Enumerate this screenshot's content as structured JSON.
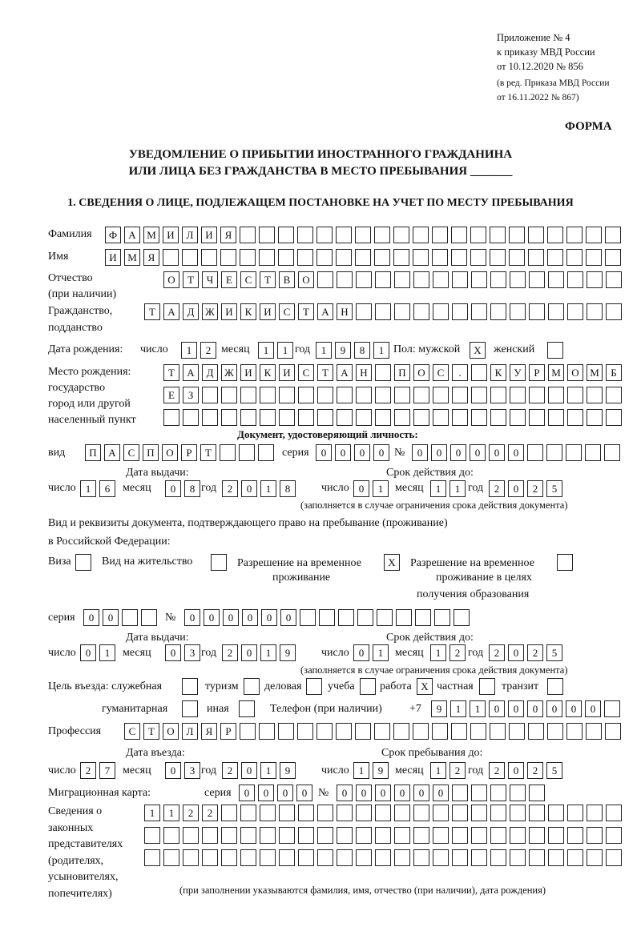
{
  "header": {
    "appendix": [
      "Приложение № 4",
      "к приказу МВД России",
      "от 10.12.2020 № 856"
    ],
    "edition": [
      "(в ред. Приказа МВД России",
      "от 16.11.2022 № 867)"
    ],
    "form_label": "ФОРМА",
    "title1": "УВЕДОМЛЕНИЕ О ПРИБЫТИИ ИНОСТРАННОГО ГРАЖДАНИНА",
    "title2": "ИЛИ ЛИЦА БЕЗ ГРАЖДАНСТВА В МЕСТО ПРЕБЫВАНИЯ _______",
    "section1": "1. СВЕДЕНИЯ О ЛИЦЕ, ПОДЛЕЖАЩЕМ ПОСТАНОВКЕ НА УЧЕТ ПО МЕСТУ ПРЕБЫВАНИЯ"
  },
  "labels": {
    "surname": "Фамилия",
    "name": "Имя",
    "patronymic": "Отчество",
    "patronymic2": "(при наличии)",
    "citizenship": "Гражданство,",
    "citizenship2": "подданство",
    "dob": "Дата рождения:",
    "day": "число",
    "month": "месяц",
    "year": "год",
    "sex": "Пол: мужской",
    "female": "женский",
    "pob": "Место рождения:",
    "pob2": "государство",
    "pob3": "город или другой",
    "pob4": "населенный пункт",
    "id_doc": "Документ, удостоверяющий личность:",
    "kind": "вид",
    "series": "серия",
    "number": "№",
    "issue_date": "Дата выдачи:",
    "valid_until": "Срок действия до:",
    "valid_note": "(заполняется в случае ограничения срока действия документа)",
    "right_doc": "Вид и реквизиты документа, подтверждающего право на пребывание (проживание)",
    "right_doc2": "в Российской Федерации:",
    "visa": "Виза",
    "residence": "Вид на жительство",
    "trp1": "Разрешение на временное",
    "trp2": "проживание",
    "trpe1": "Разрешение на временное",
    "trpe2": "проживание в целях",
    "trpe3": "получения образования",
    "purpose": "Цель въезда: служебная",
    "tourism": "туризм",
    "business": "деловая",
    "study": "учеба",
    "work": "работа",
    "private": "частная",
    "transit": "транзит",
    "humanitarian": "гуманитарная",
    "other": "иная",
    "phone": "Телефон (при наличии)",
    "phone_prefix": "+7",
    "profession": "Профессия",
    "entry_date": "Дата въезда:",
    "stay_until": "Срок пребывания до:",
    "migration_card": "Миграционная карта:",
    "reps": [
      "Сведения о",
      "законных",
      "представителях",
      "(родителях,",
      "усыновителях,",
      "попечителях)"
    ],
    "reps_note": "(при заполнении указываются фамилия, имя, отчество (при наличии), дата рождения)"
  },
  "values": {
    "surname": [
      "Ф",
      "А",
      "М",
      "И",
      "Л",
      "И",
      "Я",
      "",
      "",
      "",
      "",
      "",
      "",
      "",
      "",
      "",
      "",
      "",
      "",
      "",
      "",
      "",
      "",
      "",
      "",
      "",
      ""
    ],
    "name": [
      "И",
      "М",
      "Я",
      "",
      "",
      "",
      "",
      "",
      "",
      "",
      "",
      "",
      "",
      "",
      "",
      "",
      "",
      "",
      "",
      "",
      "",
      "",
      "",
      "",
      "",
      "",
      ""
    ],
    "patronymic": [
      "О",
      "Т",
      "Ч",
      "Е",
      "С",
      "Т",
      "В",
      "О",
      "",
      "",
      "",
      "",
      "",
      "",
      "",
      "",
      "",
      "",
      "",
      "",
      "",
      "",
      "",
      ""
    ],
    "citizenship": [
      "Т",
      "А",
      "Д",
      "Ж",
      "И",
      "К",
      "И",
      "С",
      "Т",
      "А",
      "Н",
      "",
      "",
      "",
      "",
      "",
      "",
      "",
      "",
      "",
      "",
      "",
      "",
      "",
      ""
    ],
    "dob_day": [
      "1",
      "2"
    ],
    "dob_month": [
      "1",
      "1"
    ],
    "dob_year": [
      "1",
      "9",
      "8",
      "1"
    ],
    "male": [
      "X"
    ],
    "female": [
      ""
    ],
    "pob1": [
      "Т",
      "А",
      "Д",
      "Ж",
      "И",
      "К",
      "И",
      "С",
      "Т",
      "А",
      "Н",
      "",
      "П",
      "О",
      "С",
      ".",
      "",
      "К",
      "У",
      "Р",
      "М",
      "О",
      "М",
      "Б"
    ],
    "pob2": [
      "Е",
      "З",
      "",
      "",
      "",
      "",
      "",
      "",
      "",
      "",
      "",
      "",
      "",
      "",
      "",
      "",
      "",
      "",
      "",
      "",
      "",
      "",
      "",
      ""
    ],
    "pob3": [
      "",
      "",
      "",
      "",
      "",
      "",
      "",
      "",
      "",
      "",
      "",
      "",
      "",
      "",
      "",
      "",
      "",
      "",
      "",
      "",
      "",
      "",
      "",
      ""
    ],
    "id_kind": [
      "П",
      "А",
      "С",
      "П",
      "О",
      "Р",
      "Т",
      "",
      "",
      ""
    ],
    "id_series": [
      "0",
      "0",
      "0",
      "0"
    ],
    "id_number": [
      "0",
      "0",
      "0",
      "0",
      "0",
      "0",
      "",
      "",
      "",
      "",
      ""
    ],
    "id_issue_day": [
      "1",
      "6"
    ],
    "id_issue_month": [
      "0",
      "8"
    ],
    "id_issue_year": [
      "2",
      "0",
      "1",
      "8"
    ],
    "id_valid_day": [
      "0",
      "1"
    ],
    "id_valid_month": [
      "1",
      "1"
    ],
    "id_valid_year": [
      "2",
      "0",
      "2",
      "5"
    ],
    "visa": [
      ""
    ],
    "residence": [
      ""
    ],
    "trp": [
      "X"
    ],
    "trpe": [
      ""
    ],
    "rd_series": [
      "0",
      "0",
      "",
      ""
    ],
    "rd_number": [
      "0",
      "0",
      "0",
      "0",
      "0",
      "0",
      "",
      "",
      "",
      "",
      "",
      "",
      "",
      "",
      ""
    ],
    "rd_issue_day": [
      "0",
      "1"
    ],
    "rd_issue_month": [
      "0",
      "3"
    ],
    "rd_issue_year": [
      "2",
      "0",
      "1",
      "9"
    ],
    "rd_valid_day": [
      "0",
      "1"
    ],
    "rd_valid_month": [
      "1",
      "2"
    ],
    "rd_valid_year": [
      "2",
      "0",
      "2",
      "5"
    ],
    "p_official": [
      ""
    ],
    "p_tourism": [
      ""
    ],
    "p_business": [
      ""
    ],
    "p_study": [
      ""
    ],
    "p_work": [
      "X"
    ],
    "p_private": [
      ""
    ],
    "p_transit": [
      ""
    ],
    "p_humanitarian": [
      ""
    ],
    "p_other": [
      ""
    ],
    "phone": [
      "9",
      "1",
      "1",
      "0",
      "0",
      "0",
      "0",
      "0",
      "0",
      ""
    ],
    "profession": [
      "С",
      "Т",
      "О",
      "Л",
      "Я",
      "Р",
      "",
      "",
      "",
      "",
      "",
      "",
      "",
      "",
      "",
      "",
      "",
      "",
      "",
      "",
      "",
      "",
      "",
      "",
      "",
      ""
    ],
    "entry_day": [
      "2",
      "7"
    ],
    "entry_month": [
      "0",
      "3"
    ],
    "entry_year": [
      "2",
      "0",
      "1",
      "9"
    ],
    "stay_day": [
      "1",
      "9"
    ],
    "stay_month": [
      "1",
      "2"
    ],
    "stay_year": [
      "2",
      "0",
      "2",
      "5"
    ],
    "mc_series": [
      "0",
      "0",
      "0",
      "0"
    ],
    "mc_number": [
      "0",
      "0",
      "0",
      "0",
      "0",
      "0",
      "",
      "",
      "",
      "",
      ""
    ],
    "reps1": [
      "1",
      "1",
      "2",
      "2",
      "",
      "",
      "",
      "",
      "",
      "",
      "",
      "",
      "",
      "",
      "",
      "",
      "",
      "",
      "",
      "",
      "",
      "",
      "",
      "",
      ""
    ],
    "reps2": [
      "",
      "",
      "",
      "",
      "",
      "",
      "",
      "",
      "",
      "",
      "",
      "",
      "",
      "",
      "",
      "",
      "",
      "",
      "",
      "",
      "",
      "",
      "",
      "",
      ""
    ],
    "reps3": [
      "",
      "",
      "",
      "",
      "",
      "",
      "",
      "",
      "",
      "",
      "",
      "",
      "",
      "",
      "",
      "",
      "",
      "",
      "",
      "",
      "",
      "",
      "",
      "",
      ""
    ]
  }
}
